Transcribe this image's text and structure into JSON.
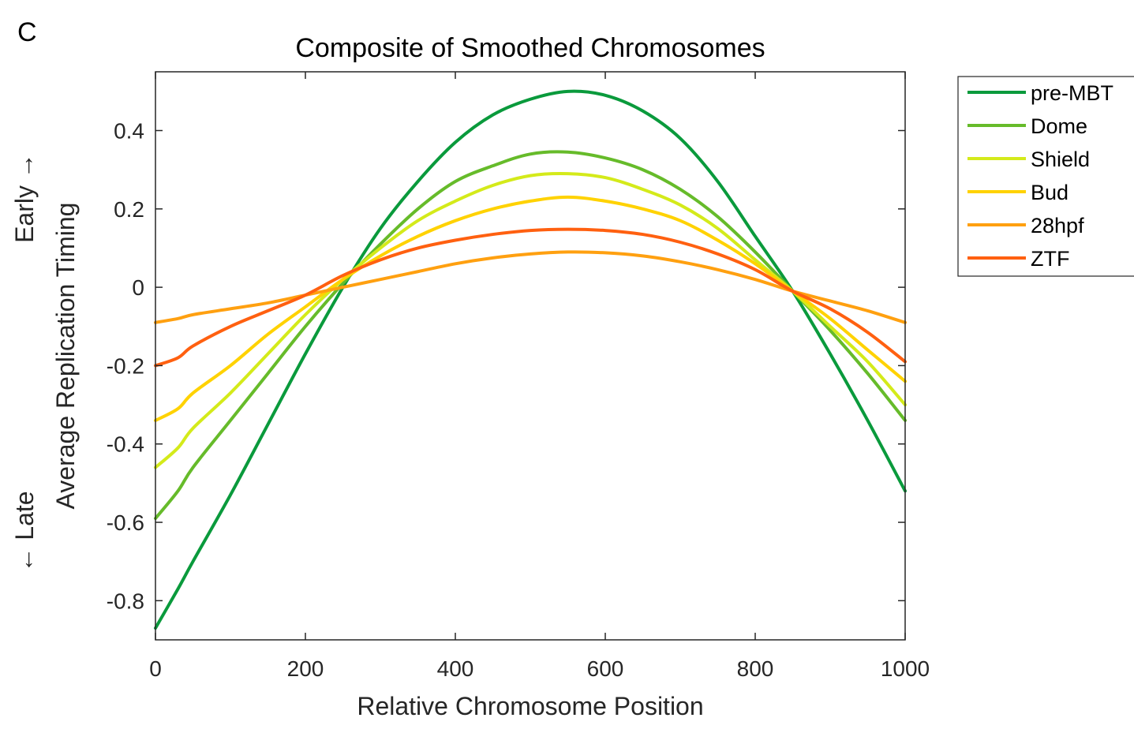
{
  "panel_letter": "C",
  "chart_data": {
    "type": "line",
    "title": "Composite of Smoothed Chromosomes",
    "xlabel": "Relative Chromosome Position",
    "ylabel_top": "Early →",
    "ylabel_main": "Average Replication Timing",
    "ylabel_bottom": "← Late",
    "xlim": [
      0,
      1000
    ],
    "ylim": [
      -0.9,
      0.55
    ],
    "xticks": [
      0,
      200,
      400,
      600,
      800,
      1000
    ],
    "xtick_labels": [
      "0",
      "200",
      "400",
      "600",
      "800",
      "1000"
    ],
    "yticks": [
      -0.8,
      -0.6,
      -0.4,
      -0.2,
      0,
      0.2,
      0.4
    ],
    "ytick_labels": [
      "-0.8",
      "-0.6",
      "-0.4",
      "-0.2",
      "0",
      "0.2",
      "0.4"
    ],
    "grid": false,
    "legend_position": "outside-top-right",
    "x": [
      0,
      30,
      50,
      100,
      150,
      200,
      250,
      300,
      350,
      400,
      450,
      500,
      550,
      600,
      650,
      700,
      750,
      800,
      850,
      900,
      950,
      1000
    ],
    "series": [
      {
        "name": "pre-MBT",
        "color": "#0a9a3c",
        "values": [
          -0.87,
          -0.77,
          -0.7,
          -0.53,
          -0.35,
          -0.17,
          0.0,
          0.15,
          0.27,
          0.37,
          0.44,
          0.48,
          0.5,
          0.49,
          0.45,
          0.38,
          0.27,
          0.13,
          -0.01,
          -0.17,
          -0.34,
          -0.52
        ]
      },
      {
        "name": "Dome",
        "color": "#66bb2a",
        "values": [
          -0.59,
          -0.52,
          -0.46,
          -0.34,
          -0.22,
          -0.1,
          0.01,
          0.11,
          0.2,
          0.27,
          0.31,
          0.34,
          0.345,
          0.33,
          0.3,
          0.25,
          0.18,
          0.09,
          -0.01,
          -0.11,
          -0.22,
          -0.34
        ]
      },
      {
        "name": "Shield",
        "color": "#d4ea1a",
        "values": [
          -0.46,
          -0.41,
          -0.36,
          -0.27,
          -0.17,
          -0.07,
          0.02,
          0.1,
          0.17,
          0.22,
          0.26,
          0.285,
          0.29,
          0.28,
          0.25,
          0.21,
          0.15,
          0.07,
          -0.01,
          -0.1,
          -0.19,
          -0.3
        ]
      },
      {
        "name": "Bud",
        "color": "#ffd200",
        "values": [
          -0.34,
          -0.31,
          -0.27,
          -0.2,
          -0.12,
          -0.05,
          0.02,
          0.08,
          0.13,
          0.17,
          0.2,
          0.22,
          0.23,
          0.22,
          0.2,
          0.17,
          0.12,
          0.06,
          -0.01,
          -0.08,
          -0.16,
          -0.24
        ]
      },
      {
        "name": "28hpf",
        "color": "#ffa010",
        "values": [
          -0.09,
          -0.08,
          -0.07,
          -0.055,
          -0.04,
          -0.02,
          0.0,
          0.02,
          0.04,
          0.06,
          0.075,
          0.085,
          0.09,
          0.088,
          0.08,
          0.065,
          0.045,
          0.02,
          -0.01,
          -0.035,
          -0.06,
          -0.09
        ]
      },
      {
        "name": "ZTF",
        "color": "#ff6010",
        "values": [
          -0.2,
          -0.18,
          -0.15,
          -0.1,
          -0.06,
          -0.02,
          0.03,
          0.07,
          0.1,
          0.12,
          0.135,
          0.145,
          0.148,
          0.145,
          0.135,
          0.115,
          0.085,
          0.045,
          -0.01,
          -0.055,
          -0.115,
          -0.19
        ]
      }
    ]
  }
}
